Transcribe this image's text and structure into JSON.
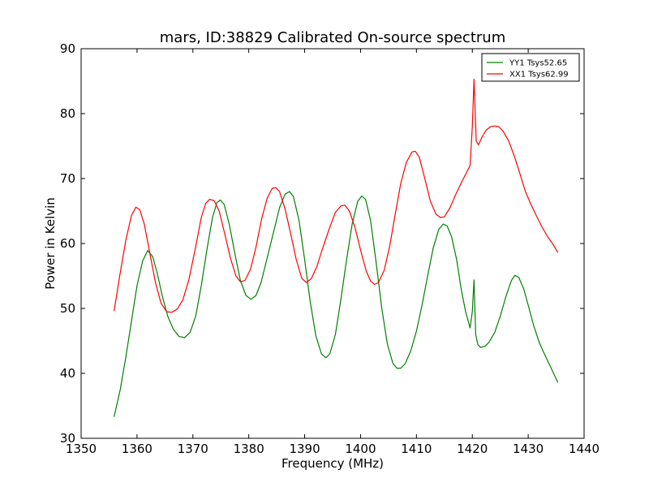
{
  "chart_data": {
    "type": "line",
    "title": "mars, ID:38829 Calibrated On-source spectrum",
    "xlabel": "Frequency (MHz)",
    "ylabel": "Power in Kelvin",
    "xlim": [
      1350,
      1440
    ],
    "ylim": [
      30,
      90
    ],
    "xticks": [
      1350,
      1360,
      1370,
      1380,
      1390,
      1400,
      1410,
      1420,
      1430,
      1440
    ],
    "yticks": [
      30,
      40,
      50,
      60,
      70,
      80,
      90
    ],
    "grid": false,
    "legend_position": "top-right",
    "series": [
      {
        "name": "YY1 Tsys52.65",
        "color": "#008000",
        "points": [
          [
            1355.9,
            33.3
          ],
          [
            1357.0,
            37.5
          ],
          [
            1358.0,
            42.5
          ],
          [
            1359.0,
            48.0
          ],
          [
            1360.0,
            53.5
          ],
          [
            1361.0,
            57.3
          ],
          [
            1361.9,
            58.9
          ],
          [
            1362.8,
            58.0
          ],
          [
            1363.6,
            55.5
          ],
          [
            1364.5,
            52.0
          ],
          [
            1365.5,
            48.8
          ],
          [
            1366.5,
            46.8
          ],
          [
            1367.5,
            45.7
          ],
          [
            1368.5,
            45.5
          ],
          [
            1369.5,
            46.3
          ],
          [
            1370.5,
            48.8
          ],
          [
            1371.5,
            53.5
          ],
          [
            1372.5,
            59.0
          ],
          [
            1373.5,
            64.0
          ],
          [
            1374.3,
            66.3
          ],
          [
            1374.9,
            66.7
          ],
          [
            1375.6,
            66.0
          ],
          [
            1376.5,
            63.0
          ],
          [
            1377.5,
            58.5
          ],
          [
            1378.5,
            54.3
          ],
          [
            1379.5,
            52.0
          ],
          [
            1380.4,
            51.4
          ],
          [
            1381.3,
            52.0
          ],
          [
            1382.2,
            54.0
          ],
          [
            1383.3,
            57.8
          ],
          [
            1384.5,
            62.0
          ],
          [
            1385.5,
            65.5
          ],
          [
            1386.5,
            67.6
          ],
          [
            1387.3,
            68.0
          ],
          [
            1388.0,
            67.2
          ],
          [
            1389.0,
            63.5
          ],
          [
            1390.0,
            57.5
          ],
          [
            1391.0,
            51.0
          ],
          [
            1392.0,
            45.8
          ],
          [
            1393.0,
            43.0
          ],
          [
            1393.8,
            42.4
          ],
          [
            1394.5,
            43.0
          ],
          [
            1395.5,
            46.0
          ],
          [
            1396.5,
            51.5
          ],
          [
            1397.5,
            57.5
          ],
          [
            1398.5,
            63.0
          ],
          [
            1399.5,
            66.5
          ],
          [
            1400.2,
            67.3
          ],
          [
            1400.9,
            66.8
          ],
          [
            1401.8,
            63.5
          ],
          [
            1402.8,
            57.0
          ],
          [
            1403.8,
            50.0
          ],
          [
            1404.8,
            44.5
          ],
          [
            1405.8,
            41.5
          ],
          [
            1406.5,
            40.8
          ],
          [
            1407.2,
            40.8
          ],
          [
            1408.0,
            41.5
          ],
          [
            1409.0,
            43.5
          ],
          [
            1410.0,
            46.5
          ],
          [
            1411.0,
            50.5
          ],
          [
            1412.0,
            55.0
          ],
          [
            1413.0,
            59.3
          ],
          [
            1414.0,
            62.2
          ],
          [
            1414.8,
            63.0
          ],
          [
            1415.5,
            62.7
          ],
          [
            1416.3,
            61.0
          ],
          [
            1417.2,
            57.5
          ],
          [
            1418.0,
            53.0
          ],
          [
            1418.8,
            49.5
          ],
          [
            1419.6,
            47.0
          ],
          [
            1420.0,
            49.5
          ],
          [
            1420.3,
            54.4
          ],
          [
            1420.6,
            46.0
          ],
          [
            1421.0,
            44.4
          ],
          [
            1421.5,
            44.0
          ],
          [
            1422.3,
            44.2
          ],
          [
            1423.0,
            44.8
          ],
          [
            1424.0,
            46.3
          ],
          [
            1425.0,
            48.8
          ],
          [
            1426.0,
            51.8
          ],
          [
            1427.0,
            54.3
          ],
          [
            1427.6,
            55.1
          ],
          [
            1428.3,
            54.8
          ],
          [
            1429.2,
            53.0
          ],
          [
            1430.0,
            50.5
          ],
          [
            1431.0,
            47.3
          ],
          [
            1432.0,
            44.7
          ],
          [
            1433.0,
            42.8
          ],
          [
            1434.0,
            41.0
          ],
          [
            1435.3,
            38.6
          ]
        ]
      },
      {
        "name": "XX1 Tsys62.99",
        "color": "#ff0000",
        "points": [
          [
            1355.9,
            49.6
          ],
          [
            1357.0,
            55.5
          ],
          [
            1358.0,
            60.5
          ],
          [
            1359.0,
            64.3
          ],
          [
            1359.8,
            65.6
          ],
          [
            1360.5,
            65.2
          ],
          [
            1361.3,
            63.0
          ],
          [
            1362.3,
            58.5
          ],
          [
            1363.3,
            54.0
          ],
          [
            1364.3,
            50.8
          ],
          [
            1365.3,
            49.5
          ],
          [
            1366.2,
            49.4
          ],
          [
            1367.2,
            49.9
          ],
          [
            1368.2,
            51.3
          ],
          [
            1369.3,
            54.5
          ],
          [
            1370.5,
            59.5
          ],
          [
            1371.5,
            64.0
          ],
          [
            1372.3,
            66.2
          ],
          [
            1373.0,
            66.8
          ],
          [
            1373.8,
            66.6
          ],
          [
            1374.7,
            65.0
          ],
          [
            1375.7,
            61.5
          ],
          [
            1376.7,
            57.8
          ],
          [
            1377.7,
            55.0
          ],
          [
            1378.5,
            54.1
          ],
          [
            1379.3,
            54.3
          ],
          [
            1380.3,
            56.0
          ],
          [
            1381.3,
            59.5
          ],
          [
            1382.3,
            63.8
          ],
          [
            1383.3,
            67.0
          ],
          [
            1384.2,
            68.5
          ],
          [
            1384.8,
            68.6
          ],
          [
            1385.5,
            68.0
          ],
          [
            1386.5,
            65.3
          ],
          [
            1387.5,
            61.5
          ],
          [
            1388.5,
            57.5
          ],
          [
            1389.5,
            54.6
          ],
          [
            1390.3,
            54.0
          ],
          [
            1391.2,
            54.6
          ],
          [
            1392.2,
            56.5
          ],
          [
            1393.3,
            59.5
          ],
          [
            1394.5,
            62.5
          ],
          [
            1395.5,
            64.8
          ],
          [
            1396.5,
            65.8
          ],
          [
            1397.2,
            65.9
          ],
          [
            1398.0,
            65.0
          ],
          [
            1399.0,
            62.5
          ],
          [
            1400.0,
            59.0
          ],
          [
            1401.0,
            55.8
          ],
          [
            1401.8,
            54.2
          ],
          [
            1402.5,
            53.7
          ],
          [
            1403.2,
            54.0
          ],
          [
            1404.2,
            55.8
          ],
          [
            1405.2,
            59.5
          ],
          [
            1406.2,
            64.5
          ],
          [
            1407.2,
            69.3
          ],
          [
            1408.2,
            72.5
          ],
          [
            1409.2,
            74.1
          ],
          [
            1409.8,
            74.2
          ],
          [
            1410.5,
            73.3
          ],
          [
            1411.5,
            70.0
          ],
          [
            1412.5,
            66.5
          ],
          [
            1413.5,
            64.5
          ],
          [
            1414.3,
            64.0
          ],
          [
            1415.0,
            64.1
          ],
          [
            1416.0,
            65.5
          ],
          [
            1417.0,
            67.5
          ],
          [
            1418.0,
            69.3
          ],
          [
            1419.0,
            71.0
          ],
          [
            1419.6,
            72.0
          ],
          [
            1420.0,
            78.0
          ],
          [
            1420.3,
            85.3
          ],
          [
            1420.7,
            75.8
          ],
          [
            1421.1,
            75.2
          ],
          [
            1421.8,
            76.5
          ],
          [
            1422.5,
            77.5
          ],
          [
            1423.3,
            78.0
          ],
          [
            1424.0,
            78.1
          ],
          [
            1424.7,
            78.0
          ],
          [
            1425.5,
            77.3
          ],
          [
            1426.5,
            75.8
          ],
          [
            1427.5,
            73.5
          ],
          [
            1428.5,
            70.8
          ],
          [
            1429.5,
            68.0
          ],
          [
            1430.5,
            66.0
          ],
          [
            1431.5,
            64.2
          ],
          [
            1432.5,
            62.5
          ],
          [
            1433.5,
            61.0
          ],
          [
            1434.5,
            59.8
          ],
          [
            1435.3,
            58.6
          ]
        ]
      }
    ]
  }
}
